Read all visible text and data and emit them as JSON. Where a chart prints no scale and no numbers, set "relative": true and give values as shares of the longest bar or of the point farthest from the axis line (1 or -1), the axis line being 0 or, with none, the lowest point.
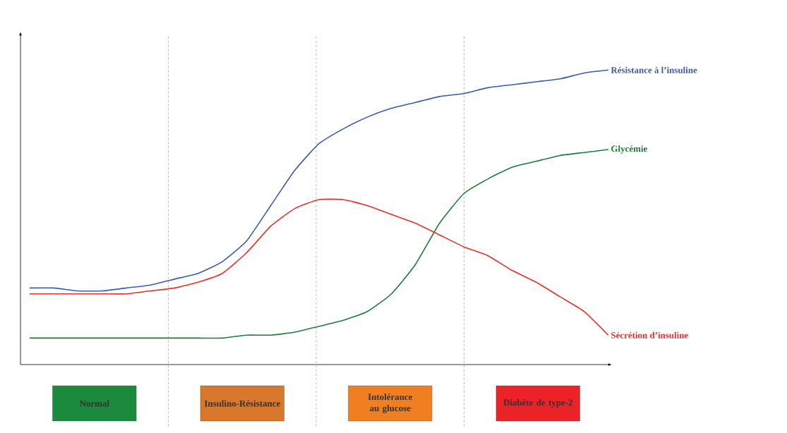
{
  "chart_data": {
    "type": "line",
    "relative": true,
    "categories": [
      null,
      null,
      null,
      null,
      null,
      null,
      null,
      null,
      null,
      null,
      null,
      null,
      null,
      null,
      null,
      null,
      null,
      null,
      null,
      null,
      null,
      null,
      null,
      null,
      null
    ],
    "series": [
      {
        "name": "Résistance à l’insuline",
        "color": "#3b5bab",
        "values": [
          0.26,
          0.26,
          0.25,
          0.25,
          0.26,
          0.27,
          0.29,
          0.31,
          0.35,
          0.42,
          0.54,
          0.66,
          0.75,
          0.8,
          0.84,
          0.87,
          0.89,
          0.91,
          0.92,
          0.94,
          0.95,
          0.96,
          0.97,
          0.99,
          1.0
        ]
      },
      {
        "name": "Glycémie",
        "color": "#1e7b3a",
        "values": [
          0.09,
          0.09,
          0.09,
          0.09,
          0.09,
          0.09,
          0.09,
          0.09,
          0.09,
          0.1,
          0.1,
          0.11,
          0.13,
          0.15,
          0.18,
          0.24,
          0.34,
          0.48,
          0.58,
          0.63,
          0.67,
          0.69,
          0.71,
          0.72,
          0.73
        ]
      },
      {
        "name": "Sécrétion d’insuline",
        "color": "#e8312a",
        "values": [
          0.24,
          0.24,
          0.24,
          0.24,
          0.24,
          0.25,
          0.26,
          0.28,
          0.31,
          0.38,
          0.47,
          0.53,
          0.56,
          0.56,
          0.54,
          0.51,
          0.48,
          0.44,
          0.4,
          0.37,
          0.32,
          0.28,
          0.23,
          0.18,
          0.1
        ]
      }
    ],
    "annotations": [
      "Normal",
      "Insulino-Résistance",
      "Intolérance au glucose",
      "Diabète de type-2"
    ]
  }
}
